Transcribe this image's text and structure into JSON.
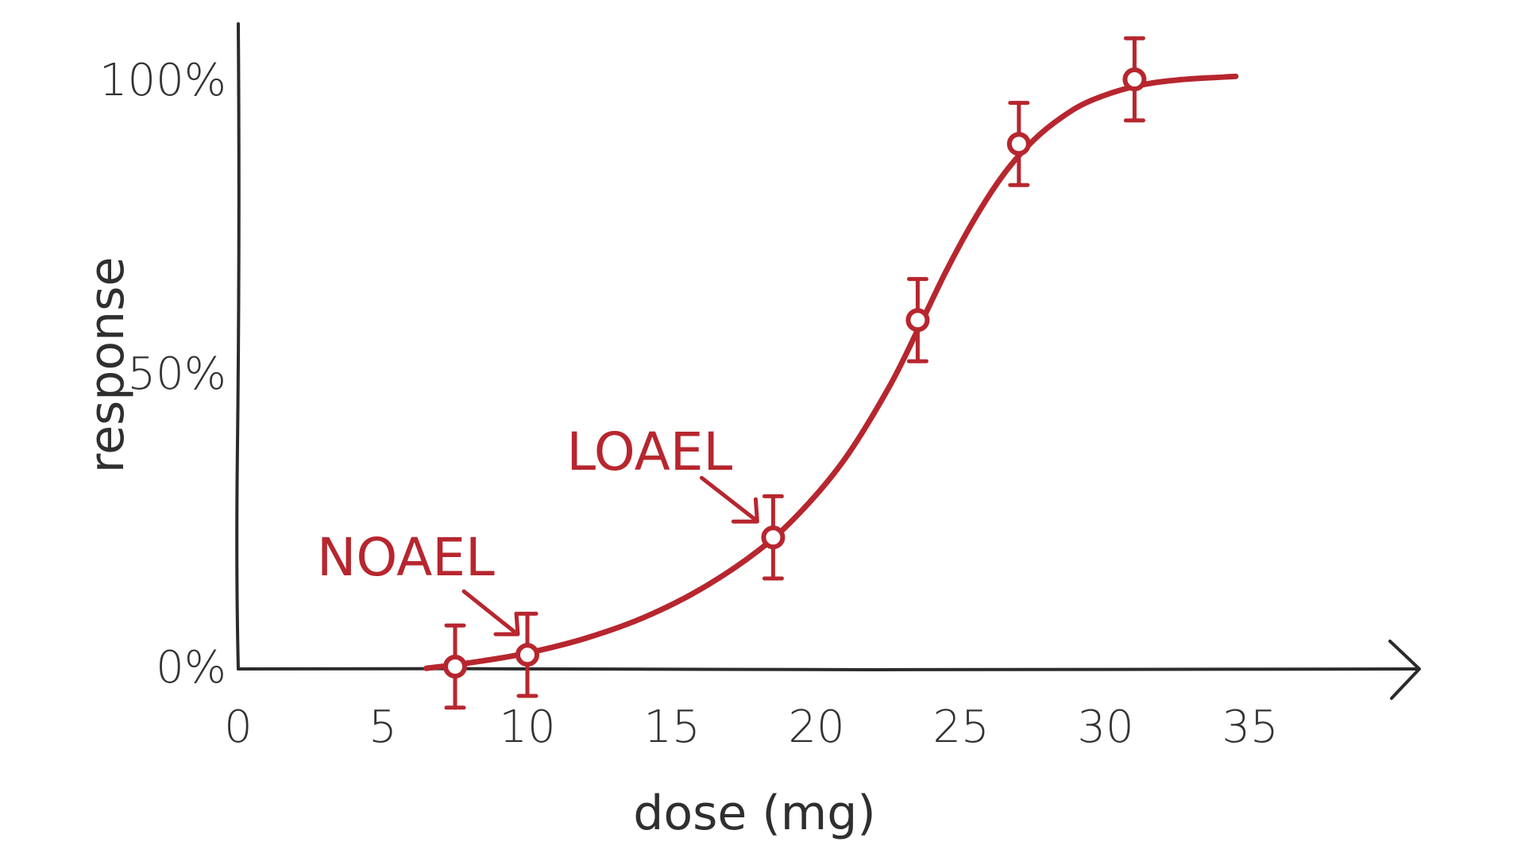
{
  "colors": {
    "series": "#b7262e",
    "axis": "#2b2b2b",
    "text": "#333333",
    "background": "#ffffff"
  },
  "chart_data": {
    "type": "scatter",
    "title": "",
    "xlabel": "dose (mg)",
    "ylabel": "response",
    "xlim": [
      0,
      40
    ],
    "ylim": [
      0,
      105
    ],
    "x_ticks": [
      0,
      5,
      10,
      15,
      20,
      25,
      30,
      35
    ],
    "x_tick_labels": [
      "0",
      "5",
      "10",
      "15",
      "20",
      "25",
      "30",
      "35"
    ],
    "y_ticks": [
      0,
      50,
      100
    ],
    "y_tick_labels": [
      "0%",
      "50%",
      "100%"
    ],
    "grid": false,
    "legend": "none",
    "series": [
      {
        "points": [
          {
            "x": 7.5,
            "y": 0,
            "err": 7
          },
          {
            "x": 10,
            "y": 2,
            "err": 7
          },
          {
            "x": 18.5,
            "y": 22,
            "err": 7
          },
          {
            "x": 23.5,
            "y": 59,
            "err": 7
          },
          {
            "x": 27,
            "y": 89,
            "err": 7
          },
          {
            "x": 31,
            "y": 100,
            "err": 7
          }
        ],
        "curve": {
          "x": [
            6.5,
            7.5,
            8.5,
            10,
            12,
            14,
            16,
            18,
            19.5,
            21,
            22.5,
            23.5,
            24.5,
            25.5,
            26.5,
            27.5,
            28.5,
            29.5,
            31,
            32.5,
            34.5
          ],
          "y": [
            -0.3,
            0.3,
            1.0,
            2.3,
            4.8,
            8.3,
            13.2,
            19.8,
            26.6,
            35.5,
            47.5,
            57.3,
            67.5,
            76.5,
            84.0,
            89.6,
            93.6,
            96.4,
            98.8,
            99.9,
            100.5
          ]
        }
      }
    ],
    "annotations": [
      {
        "text": "NOAEL",
        "x": 10,
        "y": 2
      },
      {
        "text": "LOAEL",
        "x": 18.5,
        "y": 22
      }
    ]
  }
}
